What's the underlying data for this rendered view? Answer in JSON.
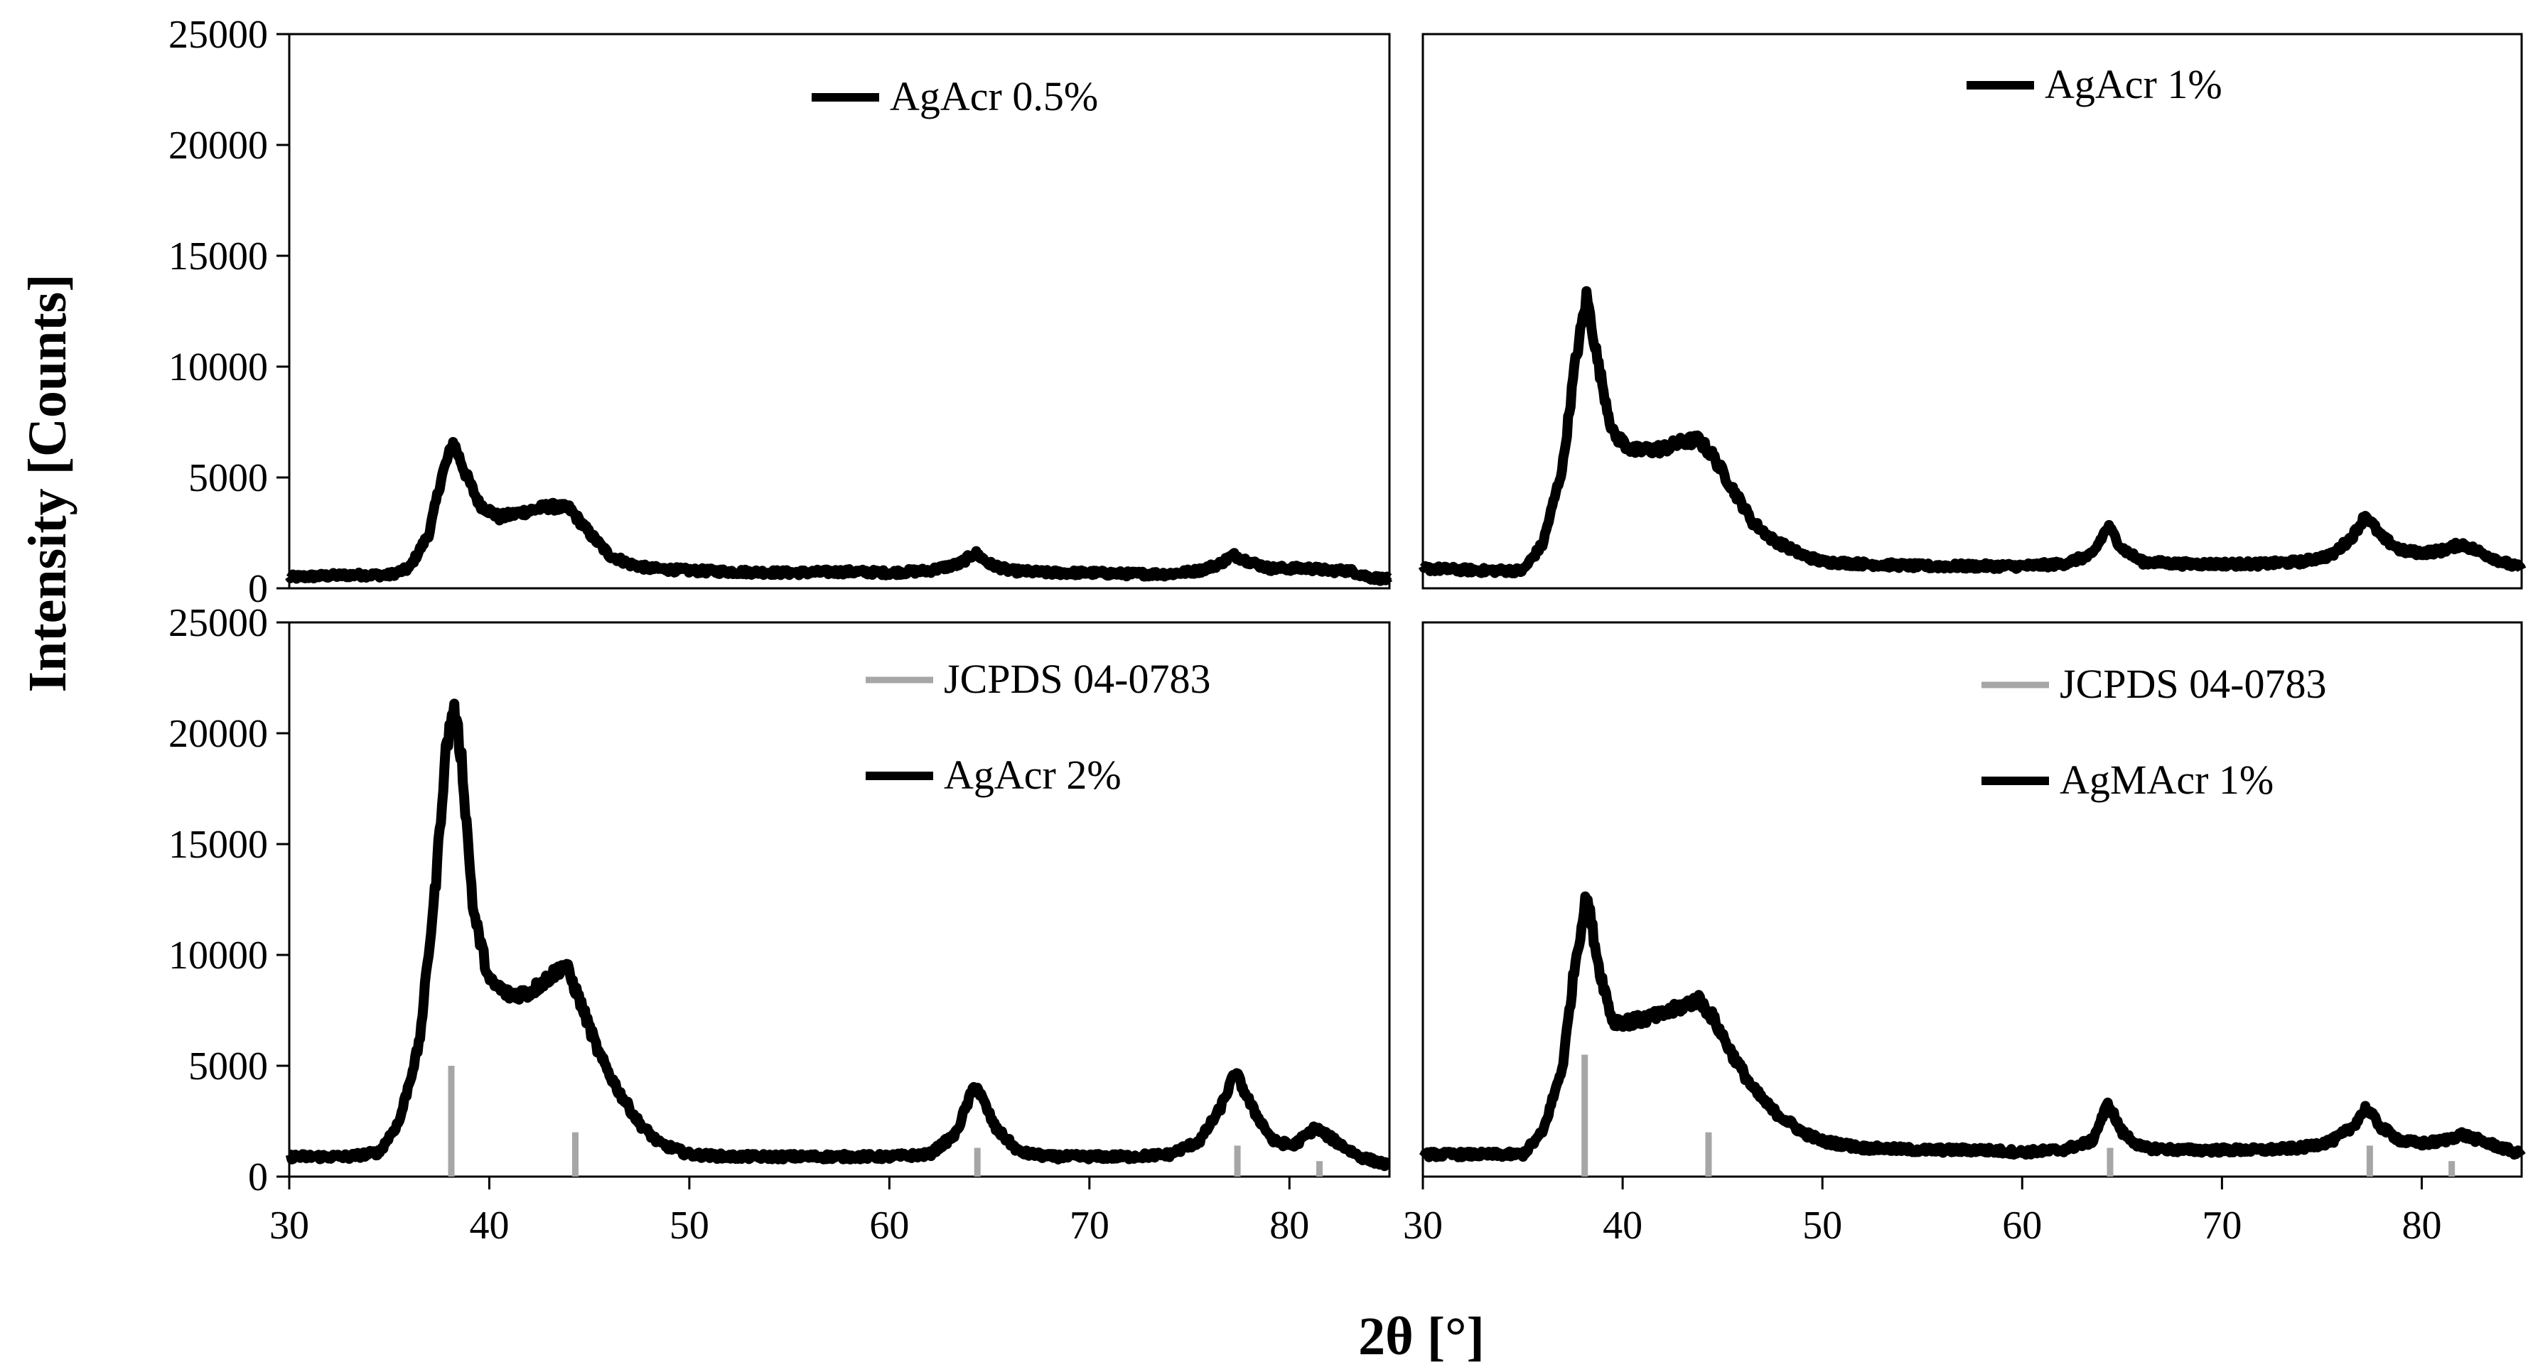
{
  "figure": {
    "ylabel": "Intensity [Counts]",
    "xlabel": "2θ [°]",
    "colors": {
      "pattern": "#000000",
      "reference": "#a6a6a6",
      "frame": "#000000"
    }
  },
  "chart_data": [
    {
      "type": "line",
      "panel": "top-left",
      "title": "",
      "xlabel": "",
      "ylabel": "",
      "xlim": [
        30,
        85
      ],
      "ylim": [
        0,
        25000
      ],
      "xticks": [],
      "yticks": [
        0,
        5000,
        10000,
        15000,
        20000,
        25000
      ],
      "legend": [
        "AgAcr 0.5%"
      ],
      "legend_position": "top-right",
      "series": [
        {
          "name": "AgAcr 0.5%",
          "x": [
            30,
            33,
            35,
            36,
            37,
            37.6,
            38.2,
            38.8,
            39.5,
            40.5,
            42,
            43,
            44,
            45,
            46,
            47,
            48,
            50,
            52,
            55,
            58,
            60,
            62,
            63.5,
            64.3,
            65,
            66,
            68,
            70,
            72,
            74,
            75.5,
            76.5,
            77.2,
            78,
            79,
            80,
            81,
            82,
            83,
            84,
            85
          ],
          "y": [
            500,
            600,
            600,
            900,
            2500,
            5000,
            6600,
            5200,
            3800,
            3200,
            3500,
            3700,
            3600,
            2500,
            1500,
            1100,
            900,
            800,
            750,
            700,
            750,
            700,
            800,
            1100,
            1600,
            1100,
            800,
            700,
            700,
            650,
            650,
            800,
            1100,
            1500,
            1200,
            900,
            900,
            900,
            800,
            800,
            500,
            400
          ]
        }
      ]
    },
    {
      "type": "line",
      "panel": "top-right",
      "title": "",
      "xlabel": "",
      "ylabel": "",
      "xlim": [
        30,
        85
      ],
      "ylim": [
        0,
        25000
      ],
      "xticks": [],
      "yticks": [],
      "legend": [
        "AgAcr 1%"
      ],
      "legend_position": "top-right",
      "series": [
        {
          "name": "AgAcr 1%",
          "x": [
            30,
            33,
            35,
            36,
            37,
            37.6,
            38.2,
            38.8,
            39.5,
            40.5,
            42,
            43,
            43.8,
            44.5,
            45.5,
            46.5,
            47.5,
            49,
            50,
            52,
            55,
            58,
            60,
            62,
            63.5,
            64.3,
            65,
            66,
            68,
            70,
            72,
            74,
            75.5,
            76.5,
            77.2,
            78,
            79,
            80,
            81,
            82,
            83,
            84,
            85
          ],
          "y": [
            900,
            800,
            800,
            2000,
            5500,
            10000,
            13200,
            10000,
            7000,
            6200,
            6300,
            6600,
            6700,
            6000,
            4500,
            3000,
            2200,
            1500,
            1200,
            1100,
            1000,
            1000,
            1000,
            1100,
            1500,
            2800,
            1800,
            1200,
            1100,
            1100,
            1100,
            1200,
            1500,
            2300,
            3300,
            2300,
            1700,
            1600,
            1700,
            2000,
            1600,
            1200,
            900
          ]
        }
      ]
    },
    {
      "type": "line",
      "panel": "bottom-left",
      "title": "",
      "xlabel": "",
      "ylabel": "",
      "xlim": [
        30,
        85
      ],
      "ylim": [
        0,
        25000
      ],
      "xticks": [
        30,
        40,
        50,
        60,
        70,
        80
      ],
      "yticks": [
        0,
        5000,
        10000,
        15000,
        20000,
        25000
      ],
      "legend": [
        "JCPDS 04-0783",
        "AgAcr 2%"
      ],
      "legend_position": "top-right",
      "series": [
        {
          "name": "AgAcr 2%",
          "x": [
            30,
            33,
            34.5,
            35.5,
            36.5,
            37.3,
            37.8,
            38.2,
            38.6,
            39.2,
            40,
            41,
            42,
            43,
            43.8,
            44.5,
            45.5,
            46.5,
            47.5,
            48.5,
            50,
            52,
            55,
            58,
            60,
            62,
            63.3,
            64.3,
            65.3,
            66.5,
            68,
            70,
            72,
            74,
            75.5,
            76.5,
            77.3,
            78.2,
            79.2,
            80.2,
            81.3,
            82.3,
            83.5,
            85
          ],
          "y": [
            900,
            900,
            1100,
            2500,
            6000,
            13000,
            19000,
            21200,
            19000,
            12000,
            8800,
            8200,
            8300,
            9000,
            9600,
            8000,
            5500,
            3800,
            2400,
            1500,
            1000,
            900,
            900,
            900,
            900,
            1000,
            1900,
            4200,
            2200,
            1100,
            900,
            900,
            900,
            1000,
            1600,
            3000,
            4700,
            3000,
            1600,
            1400,
            2200,
            1600,
            900,
            500
          ]
        },
        {
          "name": "JCPDS 04-0783",
          "type": "stick",
          "x": [
            38.1,
            44.3,
            64.4,
            77.4,
            81.5
          ],
          "y": [
            5000,
            2000,
            1300,
            1400,
            700
          ]
        }
      ]
    },
    {
      "type": "line",
      "panel": "bottom-right",
      "title": "",
      "xlabel": "",
      "ylabel": "",
      "xlim": [
        30,
        85
      ],
      "ylim": [
        0,
        25000
      ],
      "xticks": [
        30,
        40,
        50,
        60,
        70,
        80
      ],
      "yticks": [],
      "legend": [
        "JCPDS 04-0783",
        "AgMAcr 1%"
      ],
      "legend_position": "top-right",
      "series": [
        {
          "name": "AgMAcr 1%",
          "x": [
            30,
            33,
            35,
            36,
            37,
            37.6,
            38.2,
            38.8,
            39.5,
            40.5,
            42,
            43,
            43.8,
            44.5,
            45.5,
            46.5,
            47.5,
            49,
            50,
            52,
            55,
            58,
            60,
            62,
            63.5,
            64.3,
            65,
            66,
            68,
            70,
            72,
            74,
            75.5,
            76.5,
            77.2,
            78,
            79,
            80,
            81,
            82,
            83,
            84,
            85
          ],
          "y": [
            1000,
            1000,
            1000,
            2000,
            5000,
            9500,
            12700,
            9500,
            7000,
            7000,
            7300,
            7700,
            8000,
            7200,
            5500,
            4000,
            3000,
            2000,
            1600,
            1300,
            1200,
            1200,
            1100,
            1200,
            1600,
            3300,
            2000,
            1300,
            1200,
            1200,
            1200,
            1300,
            1600,
            2200,
            3100,
            2200,
            1600,
            1500,
            1600,
            1900,
            1600,
            1300,
            1000
          ]
        },
        {
          "name": "JCPDS 04-0783",
          "type": "stick",
          "x": [
            38.1,
            44.3,
            64.4,
            77.4,
            81.5
          ],
          "y": [
            5500,
            2000,
            1300,
            1400,
            700
          ]
        }
      ]
    }
  ]
}
